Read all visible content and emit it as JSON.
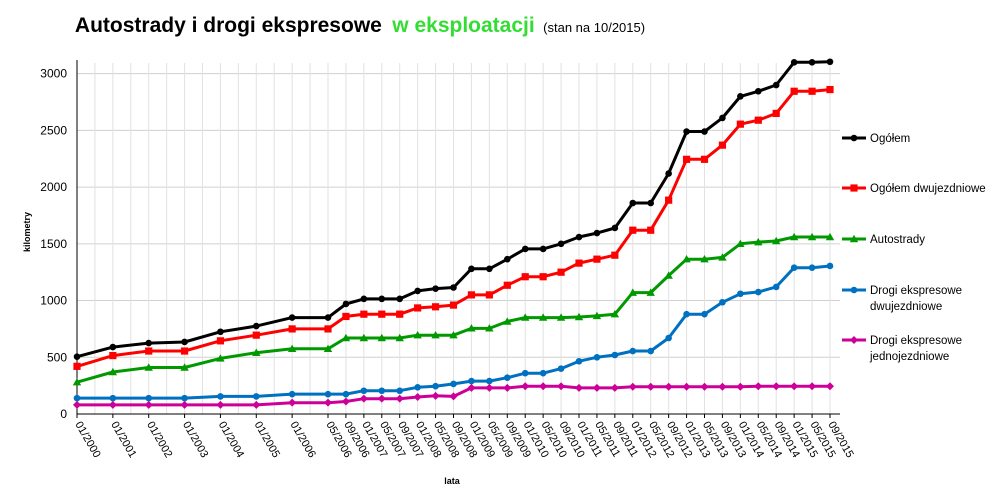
{
  "chart_data": {
    "type": "line",
    "title": "Autostrady i drogi ekspresowe",
    "title_accent": "w eksploatacji",
    "subtitle": "(stan na 10/2015)",
    "xlabel": "lata",
    "ylabel": "kilometry",
    "ylim": [
      0,
      3000
    ],
    "yticks": [
      0,
      500,
      1000,
      1500,
      2000,
      2500,
      3000
    ],
    "grid": true,
    "legend_position": "right",
    "x_dates": [
      "01/2000",
      "01/2001",
      "01/2002",
      "01/2003",
      "01/2004",
      "01/2005",
      "01/2006",
      "05/2006",
      "09/2006",
      "01/2007",
      "05/2007",
      "09/2007",
      "01/2008",
      "05/2008",
      "09/2008",
      "01/2009",
      "05/2009",
      "09/2009",
      "01/2010",
      "05/2010",
      "09/2010",
      "01/2011",
      "05/2011",
      "09/2011",
      "01/2012",
      "05/2012",
      "09/2012",
      "01/2013",
      "05/2013",
      "09/2013",
      "01/2014",
      "05/2014",
      "09/2014",
      "01/2015",
      "05/2015",
      "09/2015"
    ],
    "series": [
      {
        "name": "Ogółem",
        "color": "#000000",
        "marker": "circle",
        "points": [
          [
            0,
            505
          ],
          [
            1,
            590
          ],
          [
            2,
            625
          ],
          [
            3,
            635
          ],
          [
            4,
            725
          ],
          [
            5,
            775
          ],
          [
            6,
            850
          ],
          [
            7,
            850
          ],
          [
            7.5,
            970
          ],
          [
            8,
            1015
          ],
          [
            8.5,
            1015
          ],
          [
            9,
            1015
          ],
          [
            9.5,
            1085
          ],
          [
            10,
            1105
          ],
          [
            10.5,
            1115
          ],
          [
            11,
            1280
          ],
          [
            11.5,
            1280
          ],
          [
            12,
            1365
          ],
          [
            12.5,
            1455
          ],
          [
            13,
            1455
          ],
          [
            13.5,
            1500
          ],
          [
            14,
            1560
          ],
          [
            14.5,
            1595
          ],
          [
            15,
            1640
          ],
          [
            15.5,
            1860
          ],
          [
            16,
            1860
          ],
          [
            16.5,
            2120
          ],
          [
            17,
            2490
          ],
          [
            17.5,
            2490
          ],
          [
            18,
            2610
          ],
          [
            18.5,
            2800
          ],
          [
            19,
            2845
          ],
          [
            19.5,
            2900
          ],
          [
            20,
            3100
          ],
          [
            20.5,
            3100
          ],
          [
            21,
            3105
          ]
        ]
      },
      {
        "name": "Ogółem dwujezdniowe",
        "color": "#ff0000",
        "marker": "square",
        "points": [
          [
            0,
            420
          ],
          [
            1,
            515
          ],
          [
            2,
            555
          ],
          [
            3,
            555
          ],
          [
            4,
            645
          ],
          [
            5,
            695
          ],
          [
            6,
            750
          ],
          [
            7,
            750
          ],
          [
            7.5,
            860
          ],
          [
            8,
            880
          ],
          [
            8.5,
            880
          ],
          [
            9,
            880
          ],
          [
            9.5,
            935
          ],
          [
            10,
            945
          ],
          [
            10.5,
            960
          ],
          [
            11,
            1050
          ],
          [
            11.5,
            1050
          ],
          [
            12,
            1135
          ],
          [
            12.5,
            1210
          ],
          [
            13,
            1210
          ],
          [
            13.5,
            1250
          ],
          [
            14,
            1330
          ],
          [
            14.5,
            1365
          ],
          [
            15,
            1400
          ],
          [
            15.5,
            1620
          ],
          [
            16,
            1620
          ],
          [
            16.5,
            1885
          ],
          [
            17,
            2245
          ],
          [
            17.5,
            2245
          ],
          [
            18,
            2370
          ],
          [
            18.5,
            2555
          ],
          [
            19,
            2590
          ],
          [
            19.5,
            2650
          ],
          [
            20,
            2845
          ],
          [
            20.5,
            2845
          ],
          [
            21,
            2860
          ]
        ]
      },
      {
        "name": "Autostrady",
        "color": "#009900",
        "marker": "triangle",
        "points": [
          [
            0,
            280
          ],
          [
            1,
            370
          ],
          [
            2,
            410
          ],
          [
            3,
            410
          ],
          [
            4,
            490
          ],
          [
            5,
            540
          ],
          [
            6,
            575
          ],
          [
            7,
            575
          ],
          [
            7.5,
            670
          ],
          [
            8,
            670
          ],
          [
            8.5,
            670
          ],
          [
            9,
            670
          ],
          [
            9.5,
            695
          ],
          [
            10,
            695
          ],
          [
            10.5,
            695
          ],
          [
            11,
            755
          ],
          [
            11.5,
            755
          ],
          [
            12,
            815
          ],
          [
            12.5,
            850
          ],
          [
            13,
            850
          ],
          [
            13.5,
            850
          ],
          [
            14,
            855
          ],
          [
            14.5,
            865
          ],
          [
            15,
            880
          ],
          [
            15.5,
            1070
          ],
          [
            16,
            1070
          ],
          [
            16.5,
            1220
          ],
          [
            17,
            1365
          ],
          [
            17.5,
            1365
          ],
          [
            18,
            1380
          ],
          [
            18.5,
            1500
          ],
          [
            19,
            1515
          ],
          [
            19.5,
            1525
          ],
          [
            20,
            1560
          ],
          [
            20.5,
            1560
          ],
          [
            21,
            1560
          ]
        ]
      },
      {
        "name": "Drogi ekspresowe dwujezdniowe",
        "color": "#0070c0",
        "marker": "circle",
        "points": [
          [
            0,
            140
          ],
          [
            1,
            140
          ],
          [
            2,
            140
          ],
          [
            3,
            140
          ],
          [
            4,
            155
          ],
          [
            5,
            155
          ],
          [
            6,
            175
          ],
          [
            7,
            175
          ],
          [
            7.5,
            175
          ],
          [
            8,
            205
          ],
          [
            8.5,
            205
          ],
          [
            9,
            205
          ],
          [
            9.5,
            235
          ],
          [
            10,
            245
          ],
          [
            10.5,
            265
          ],
          [
            11,
            290
          ],
          [
            11.5,
            290
          ],
          [
            12,
            320
          ],
          [
            12.5,
            360
          ],
          [
            13,
            360
          ],
          [
            13.5,
            400
          ],
          [
            14,
            465
          ],
          [
            14.5,
            500
          ],
          [
            15,
            520
          ],
          [
            15.5,
            555
          ],
          [
            16,
            555
          ],
          [
            16.5,
            670
          ],
          [
            17,
            880
          ],
          [
            17.5,
            880
          ],
          [
            18,
            985
          ],
          [
            18.5,
            1060
          ],
          [
            19,
            1075
          ],
          [
            19.5,
            1120
          ],
          [
            20,
            1290
          ],
          [
            20.5,
            1290
          ],
          [
            21,
            1305
          ]
        ]
      },
      {
        "name": "Drogi ekspresowe jednojezdniowe",
        "color": "#cc0099",
        "marker": "diamond",
        "points": [
          [
            0,
            80
          ],
          [
            1,
            80
          ],
          [
            2,
            80
          ],
          [
            3,
            80
          ],
          [
            4,
            80
          ],
          [
            5,
            80
          ],
          [
            6,
            100
          ],
          [
            7,
            100
          ],
          [
            7.5,
            110
          ],
          [
            8,
            135
          ],
          [
            8.5,
            135
          ],
          [
            9,
            135
          ],
          [
            9.5,
            150
          ],
          [
            10,
            160
          ],
          [
            10.5,
            155
          ],
          [
            11,
            230
          ],
          [
            11.5,
            230
          ],
          [
            12,
            230
          ],
          [
            12.5,
            245
          ],
          [
            13,
            245
          ],
          [
            13.5,
            245
          ],
          [
            14,
            230
          ],
          [
            14.5,
            230
          ],
          [
            15,
            230
          ],
          [
            15.5,
            240
          ],
          [
            16,
            240
          ],
          [
            16.5,
            240
          ],
          [
            17,
            240
          ],
          [
            17.5,
            240
          ],
          [
            18,
            240
          ],
          [
            18.5,
            240
          ],
          [
            19,
            245
          ],
          [
            19.5,
            245
          ],
          [
            20,
            245
          ],
          [
            20.5,
            245
          ],
          [
            21,
            245
          ]
        ]
      }
    ],
    "legend": [
      {
        "lines": [
          "Ogółem"
        ]
      },
      {
        "lines": [
          "Ogółem dwujezdniowe"
        ]
      },
      {
        "lines": [
          "Autostrady"
        ]
      },
      {
        "lines": [
          "Drogi ekspresowe",
          "dwujezdniowe"
        ]
      },
      {
        "lines": [
          "Drogi ekspresowe",
          "jednojezdniowe"
        ]
      }
    ]
  }
}
